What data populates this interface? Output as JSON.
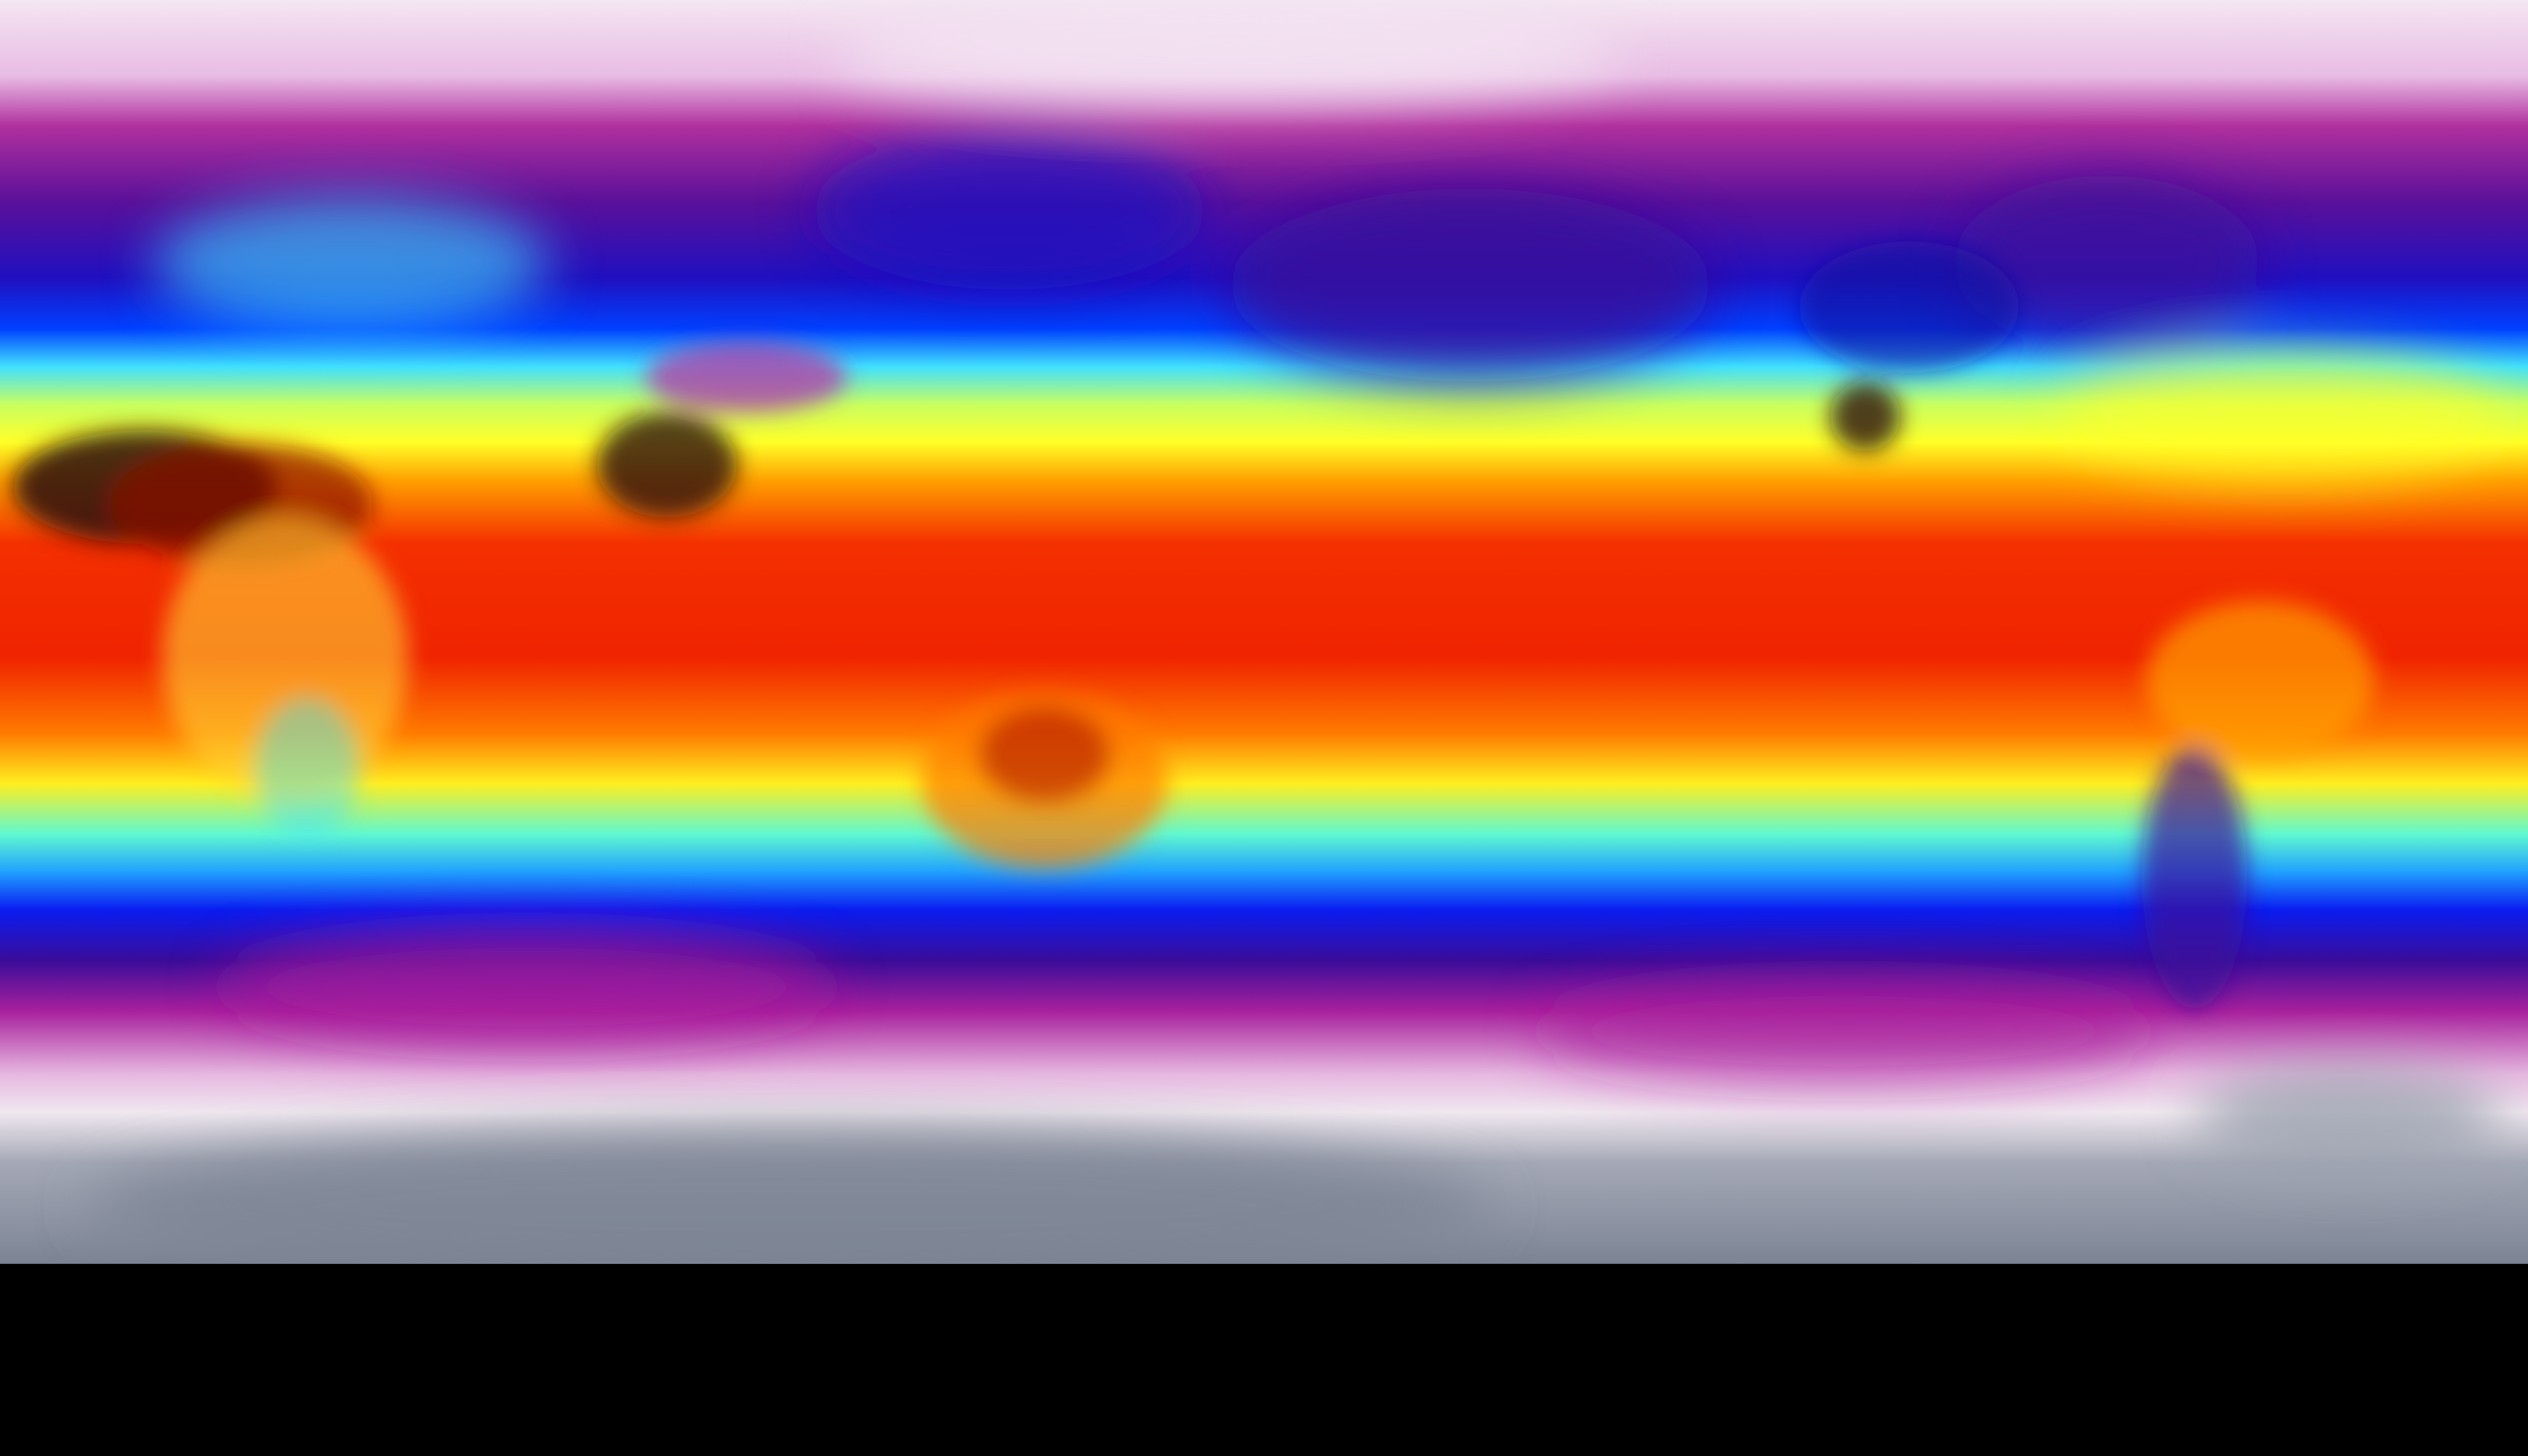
{
  "map": {
    "projection": "equirectangular",
    "palette": {
      "polar_white": "#f2dcef",
      "magenta": "#a8209c",
      "purple": "#3a0c9a",
      "blue": "#0a1cf0",
      "cyan": "#40f0ff",
      "yellow": "#ffff28",
      "orange": "#ff9a00",
      "red": "#f02400",
      "dark_red": "#8a0a00",
      "black": "#2a0a0a",
      "antarctic_gray": "#8a909e"
    }
  }
}
